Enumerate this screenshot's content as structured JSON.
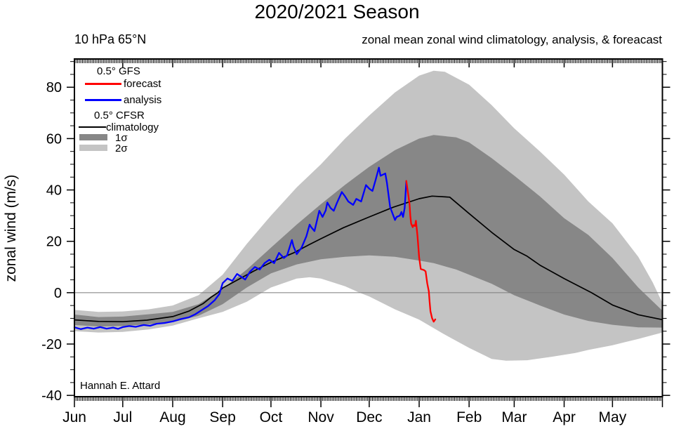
{
  "page": {
    "title": "2020/2021 Season",
    "header_left": "10 hPa 65°N",
    "header_right": "zonal mean zonal wind climatology, analysis, & foreacast",
    "attribution": "Hannah E. Attard"
  },
  "legend": {
    "gfs_header": "0.5° GFS",
    "forecast_label": "forecast",
    "analysis_label": "analysis",
    "cfsr_header": "0.5° CFSR",
    "climatology_label": "climatology",
    "sigma1_label": "1σ",
    "sigma2_label": "2σ"
  },
  "colors": {
    "forecast": "#ff0000",
    "analysis": "#0000ff",
    "climatology": "#000000",
    "sigma1_band": "#878787",
    "sigma2_band": "#c4c4c4",
    "zero_line": "#7a7a7a",
    "frame": "#000000"
  },
  "chart_data": {
    "type": "line",
    "title": "2020/2021 Season",
    "xlabel": "",
    "ylabel": "zonal wind (m/s)",
    "ylim": [
      -40.5,
      91
    ],
    "y_major_ticks": [
      -40,
      -20,
      0,
      20,
      40,
      60,
      80
    ],
    "y_minor_step": 5,
    "x_months": [
      "Jun",
      "Jul",
      "Aug",
      "Sep",
      "Oct",
      "Nov",
      "Dec",
      "Jan",
      "Feb",
      "Mar",
      "Apr",
      "May"
    ],
    "x_month_start_days": [
      0,
      30,
      61,
      92,
      122,
      153,
      183,
      214,
      245,
      273,
      304,
      334
    ],
    "x_total_days": 365,
    "grid": false,
    "zero_reference_line": 0,
    "legend_position": "top-left",
    "series_units": "m/s; x = days since Jun 1",
    "series": {
      "climatology": [
        [
          0,
          -10.6
        ],
        [
          7,
          -10.9
        ],
        [
          15,
          -11.2
        ],
        [
          30,
          -11.3
        ],
        [
          45,
          -10.7
        ],
        [
          61,
          -9.3
        ],
        [
          71,
          -7.2
        ],
        [
          80,
          -4.2
        ],
        [
          85,
          -1.7
        ],
        [
          89,
          0
        ],
        [
          92,
          1.8
        ],
        [
          102,
          5.2
        ],
        [
          111,
          8.3
        ],
        [
          122,
          11.8
        ],
        [
          136,
          15.5
        ],
        [
          146,
          18.8
        ],
        [
          153,
          21
        ],
        [
          167,
          25.3
        ],
        [
          183,
          29.5
        ],
        [
          198,
          33.3
        ],
        [
          214,
          36.6
        ],
        [
          222,
          37.6
        ],
        [
          233,
          37.2
        ],
        [
          245,
          30.8
        ],
        [
          259,
          23.5
        ],
        [
          273,
          16.8
        ],
        [
          281,
          14.2
        ],
        [
          289,
          10.7
        ],
        [
          304,
          5.5
        ],
        [
          321,
          0
        ],
        [
          334,
          -4.8
        ],
        [
          350,
          -8.6
        ],
        [
          365,
          -10.5
        ]
      ],
      "analysis": [
        [
          0,
          -13.5
        ],
        [
          4,
          -14.2
        ],
        [
          8,
          -13.6
        ],
        [
          12,
          -14.0
        ],
        [
          16,
          -13.4
        ],
        [
          20,
          -14.0
        ],
        [
          24,
          -13.6
        ],
        [
          27,
          -14.1
        ],
        [
          30,
          -13.4
        ],
        [
          34,
          -13.0
        ],
        [
          38,
          -13.3
        ],
        [
          43,
          -12.6
        ],
        [
          47,
          -12.9
        ],
        [
          51,
          -12.1
        ],
        [
          56,
          -11.8
        ],
        [
          61,
          -11.2
        ],
        [
          66,
          -10.3
        ],
        [
          71,
          -9.6
        ],
        [
          75,
          -8.4
        ],
        [
          79,
          -6.8
        ],
        [
          83,
          -5.2
        ],
        [
          87,
          -3.0
        ],
        [
          90,
          -0.5
        ],
        [
          92,
          3.7
        ],
        [
          95,
          5.5
        ],
        [
          98,
          4.6
        ],
        [
          101,
          7.3
        ],
        [
          104,
          6.0
        ],
        [
          106,
          5.1
        ],
        [
          109,
          8.2
        ],
        [
          112,
          10.0
        ],
        [
          115,
          9.0
        ],
        [
          118,
          11.5
        ],
        [
          121,
          12.8
        ],
        [
          124,
          11.5
        ],
        [
          127,
          15.5
        ],
        [
          130,
          13.5
        ],
        [
          132,
          14.5
        ],
        [
          135,
          20.5
        ],
        [
          136,
          18.0
        ],
        [
          138,
          15.0
        ],
        [
          141,
          17.5
        ],
        [
          144,
          22.0
        ],
        [
          146,
          26.5
        ],
        [
          147,
          25.5
        ],
        [
          149,
          24.0
        ],
        [
          152,
          31.9
        ],
        [
          154,
          29.5
        ],
        [
          156,
          32.0
        ],
        [
          157,
          35.1
        ],
        [
          159,
          33.0
        ],
        [
          161,
          31.9
        ],
        [
          163,
          35.0
        ],
        [
          166,
          39.2
        ],
        [
          168,
          37.5
        ],
        [
          170,
          35.5
        ],
        [
          173,
          34.2
        ],
        [
          175,
          36.5
        ],
        [
          178,
          35.5
        ],
        [
          181,
          41.9
        ],
        [
          183,
          40.5
        ],
        [
          185,
          39.6
        ],
        [
          187,
          44.0
        ],
        [
          189,
          48.7
        ],
        [
          190,
          45.5
        ],
        [
          193,
          46.4
        ],
        [
          194,
          42.8
        ],
        [
          196,
          33.3
        ],
        [
          199,
          28.3
        ],
        [
          200,
          29.5
        ],
        [
          202,
          30.0
        ],
        [
          203,
          31.4
        ],
        [
          204,
          29.5
        ],
        [
          205,
          33.0
        ],
        [
          206,
          43.3
        ]
      ],
      "forecast": [
        [
          206,
          43.5
        ],
        [
          207,
          39.0
        ],
        [
          208,
          34.6
        ],
        [
          208.5,
          30.0
        ],
        [
          209,
          26.9
        ],
        [
          210,
          25.5
        ],
        [
          210.5,
          26.3
        ],
        [
          211.4,
          26.0
        ],
        [
          212,
          28.0
        ],
        [
          213,
          21.9
        ],
        [
          214,
          13.7
        ],
        [
          215,
          9.2
        ],
        [
          217,
          8.8
        ],
        [
          218,
          8.3
        ],
        [
          219,
          3.7
        ],
        [
          220,
          0.5
        ],
        [
          220.5,
          -3.5
        ],
        [
          221,
          -7.2
        ],
        [
          222,
          -9.9
        ],
        [
          223,
          -11.3
        ],
        [
          224,
          -10.4
        ]
      ],
      "sigma1_upper": [
        [
          0,
          -8.5
        ],
        [
          15,
          -9.5
        ],
        [
          30,
          -9.3
        ],
        [
          46,
          -8.4
        ],
        [
          61,
          -7.5
        ],
        [
          77,
          -4.5
        ],
        [
          92,
          1.5
        ],
        [
          107,
          9
        ],
        [
          122,
          17.5
        ],
        [
          138,
          26.5
        ],
        [
          153,
          34.5
        ],
        [
          168,
          42
        ],
        [
          183,
          49
        ],
        [
          199,
          55.5
        ],
        [
          214,
          60
        ],
        [
          223,
          61.4
        ],
        [
          237,
          60.5
        ],
        [
          245,
          58.5
        ],
        [
          259,
          52.4
        ],
        [
          273,
          45.6
        ],
        [
          289,
          37.5
        ],
        [
          304,
          29
        ],
        [
          319,
          22.5
        ],
        [
          334,
          13.5
        ],
        [
          350,
          2
        ],
        [
          365,
          -7
        ]
      ],
      "sigma1_lower": [
        [
          0,
          -12.6
        ],
        [
          15,
          -13.2
        ],
        [
          30,
          -13
        ],
        [
          46,
          -12.3
        ],
        [
          61,
          -11.5
        ],
        [
          77,
          -9
        ],
        [
          92,
          -4.5
        ],
        [
          107,
          2
        ],
        [
          122,
          7.5
        ],
        [
          138,
          11
        ],
        [
          153,
          13
        ],
        [
          168,
          14
        ],
        [
          183,
          14.5
        ],
        [
          199,
          14
        ],
        [
          214,
          12.5
        ],
        [
          223,
          11.5
        ],
        [
          237,
          9
        ],
        [
          245,
          7
        ],
        [
          259,
          3.5
        ],
        [
          273,
          -1
        ],
        [
          289,
          -5
        ],
        [
          304,
          -8.5
        ],
        [
          319,
          -11
        ],
        [
          334,
          -12.5
        ],
        [
          350,
          -13.5
        ],
        [
          365,
          -13.6
        ]
      ],
      "sigma2_upper": [
        [
          0,
          -6.7
        ],
        [
          15,
          -7.5
        ],
        [
          30,
          -7.3
        ],
        [
          46,
          -6.5
        ],
        [
          61,
          -5
        ],
        [
          77,
          -1
        ],
        [
          92,
          7
        ],
        [
          107,
          19
        ],
        [
          122,
          30
        ],
        [
          138,
          41
        ],
        [
          153,
          50
        ],
        [
          168,
          60
        ],
        [
          183,
          69
        ],
        [
          199,
          78
        ],
        [
          214,
          84.5
        ],
        [
          223,
          86.4
        ],
        [
          230,
          86
        ],
        [
          245,
          81
        ],
        [
          259,
          73
        ],
        [
          273,
          64
        ],
        [
          289,
          55
        ],
        [
          304,
          46
        ],
        [
          319,
          35.5
        ],
        [
          334,
          27
        ],
        [
          350,
          14
        ],
        [
          359,
          4
        ],
        [
          365,
          -4
        ]
      ],
      "sigma2_lower": [
        [
          0,
          -15
        ],
        [
          15,
          -15.5
        ],
        [
          30,
          -15.3
        ],
        [
          46,
          -14.3
        ],
        [
          61,
          -12.8
        ],
        [
          77,
          -10
        ],
        [
          92,
          -7.5
        ],
        [
          107,
          -3.5
        ],
        [
          122,
          2
        ],
        [
          138,
          5.5
        ],
        [
          146,
          6
        ],
        [
          153,
          5.5
        ],
        [
          168,
          2.5
        ],
        [
          177,
          0
        ],
        [
          183,
          -1.5
        ],
        [
          199,
          -6.5
        ],
        [
          214,
          -10.5
        ],
        [
          229,
          -16
        ],
        [
          245,
          -21.5
        ],
        [
          259,
          -25.8
        ],
        [
          268,
          -26.5
        ],
        [
          281,
          -26.3
        ],
        [
          296,
          -25
        ],
        [
          311,
          -23.5
        ],
        [
          319,
          -22.3
        ],
        [
          334,
          -20.5
        ],
        [
          350,
          -18
        ],
        [
          359,
          -16.5
        ],
        [
          365,
          -15.5
        ]
      ]
    }
  }
}
